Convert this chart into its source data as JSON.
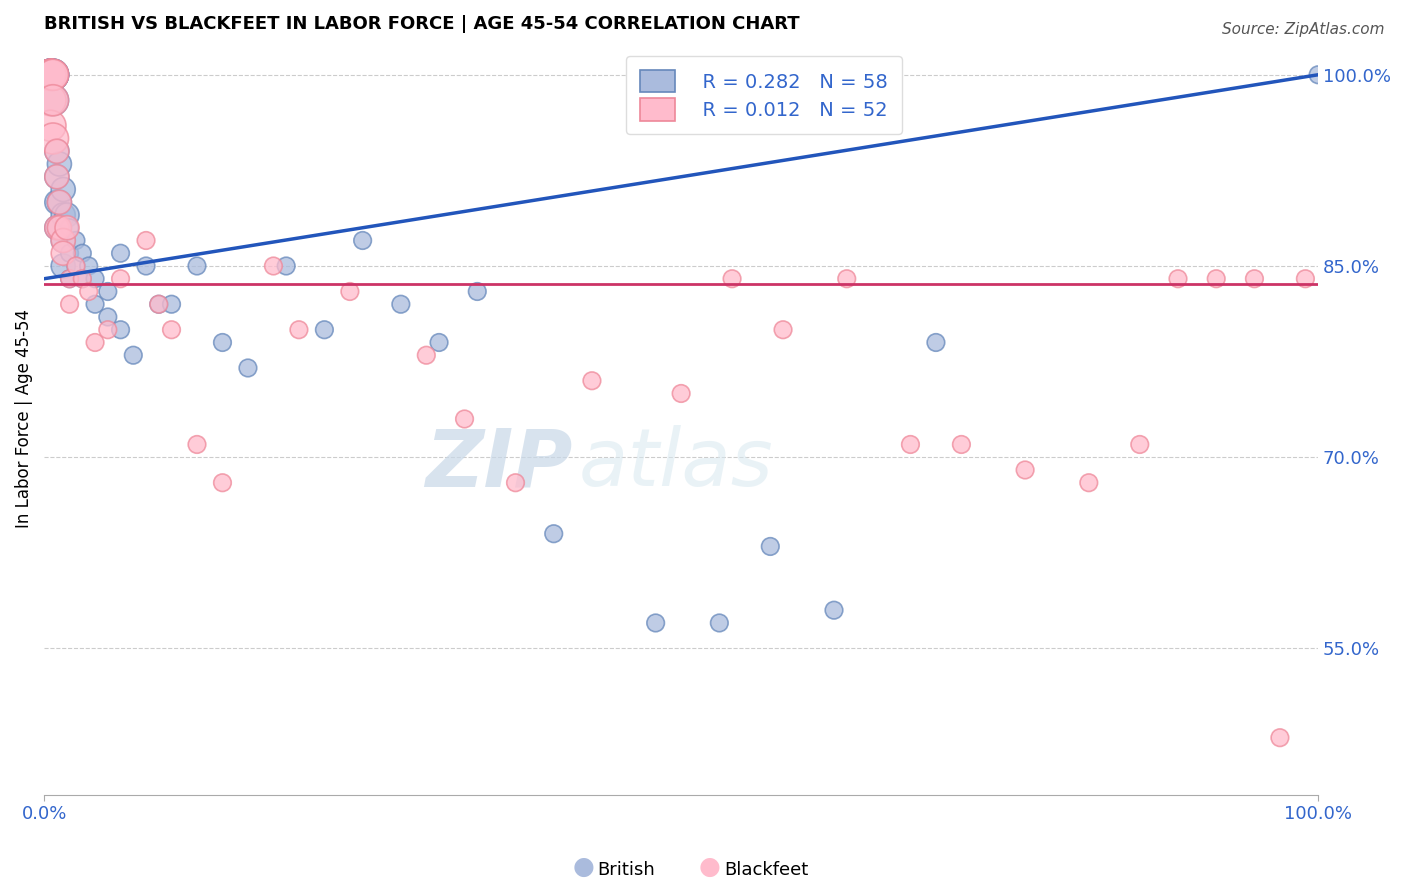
{
  "title": "BRITISH VS BLACKFEET IN LABOR FORCE | AGE 45-54 CORRELATION CHART",
  "source": "Source: ZipAtlas.com",
  "ylabel": "In Labor Force | Age 45-54",
  "R_british": 0.282,
  "N_british": 58,
  "R_blackfeet": 0.012,
  "N_blackfeet": 52,
  "blue_color": "#aabbdd",
  "blue_edge_color": "#6688bb",
  "pink_color": "#ffbbcc",
  "pink_edge_color": "#ee8899",
  "blue_line_color": "#2255bb",
  "pink_line_color": "#cc3366",
  "ytick_labels": [
    "55.0%",
    "70.0%",
    "85.0%",
    "100.0%"
  ],
  "ytick_values": [
    0.55,
    0.7,
    0.85,
    1.0
  ],
  "xlim": [
    0.0,
    1.0
  ],
  "ylim": [
    0.435,
    1.025
  ],
  "watermark_zip": "ZIP",
  "watermark_atlas": "atlas",
  "annotation_color": "#3366CC",
  "grid_color": "#cccccc",
  "british_x": [
    0.005,
    0.005,
    0.005,
    0.005,
    0.005,
    0.005,
    0.005,
    0.007,
    0.007,
    0.007,
    0.007,
    0.007,
    0.01,
    0.01,
    0.01,
    0.01,
    0.012,
    0.012,
    0.012,
    0.015,
    0.015,
    0.015,
    0.015,
    0.018,
    0.02,
    0.02,
    0.02,
    0.025,
    0.025,
    0.03,
    0.03,
    0.035,
    0.04,
    0.04,
    0.05,
    0.05,
    0.06,
    0.06,
    0.07,
    0.08,
    0.09,
    0.1,
    0.12,
    0.14,
    0.16,
    0.19,
    0.22,
    0.25,
    0.28,
    0.31,
    0.34,
    0.4,
    0.48,
    0.53,
    0.57,
    0.62,
    0.7,
    1.0
  ],
  "british_y": [
    1.0,
    1.0,
    1.0,
    1.0,
    1.0,
    1.0,
    1.0,
    1.0,
    1.0,
    1.0,
    1.0,
    0.98,
    0.94,
    0.92,
    0.9,
    0.88,
    0.93,
    0.9,
    0.88,
    0.91,
    0.89,
    0.87,
    0.85,
    0.89,
    0.88,
    0.86,
    0.84,
    0.87,
    0.85,
    0.86,
    0.84,
    0.85,
    0.84,
    0.82,
    0.83,
    0.81,
    0.86,
    0.8,
    0.78,
    0.85,
    0.82,
    0.82,
    0.85,
    0.79,
    0.77,
    0.85,
    0.8,
    0.87,
    0.82,
    0.79,
    0.83,
    0.64,
    0.57,
    0.57,
    0.63,
    0.58,
    0.79,
    1.0
  ],
  "blackfeet_x": [
    0.005,
    0.005,
    0.005,
    0.005,
    0.005,
    0.005,
    0.007,
    0.007,
    0.007,
    0.007,
    0.01,
    0.01,
    0.01,
    0.012,
    0.012,
    0.015,
    0.015,
    0.018,
    0.02,
    0.02,
    0.025,
    0.03,
    0.035,
    0.04,
    0.05,
    0.06,
    0.08,
    0.09,
    0.1,
    0.12,
    0.14,
    0.18,
    0.2,
    0.24,
    0.3,
    0.33,
    0.37,
    0.43,
    0.5,
    0.54,
    0.58,
    0.63,
    0.68,
    0.72,
    0.77,
    0.82,
    0.86,
    0.89,
    0.92,
    0.95,
    0.97,
    0.99
  ],
  "blackfeet_y": [
    1.0,
    1.0,
    1.0,
    1.0,
    0.98,
    0.96,
    1.0,
    1.0,
    0.98,
    0.95,
    0.94,
    0.92,
    0.88,
    0.9,
    0.88,
    0.87,
    0.86,
    0.88,
    0.84,
    0.82,
    0.85,
    0.84,
    0.83,
    0.79,
    0.8,
    0.84,
    0.87,
    0.82,
    0.8,
    0.71,
    0.68,
    0.85,
    0.8,
    0.83,
    0.78,
    0.73,
    0.68,
    0.76,
    0.75,
    0.84,
    0.8,
    0.84,
    0.71,
    0.71,
    0.69,
    0.68,
    0.71,
    0.84,
    0.84,
    0.84,
    0.48,
    0.84
  ],
  "blue_trend_y0": 0.84,
  "blue_trend_y1": 1.0,
  "pink_trend_y": 0.836
}
